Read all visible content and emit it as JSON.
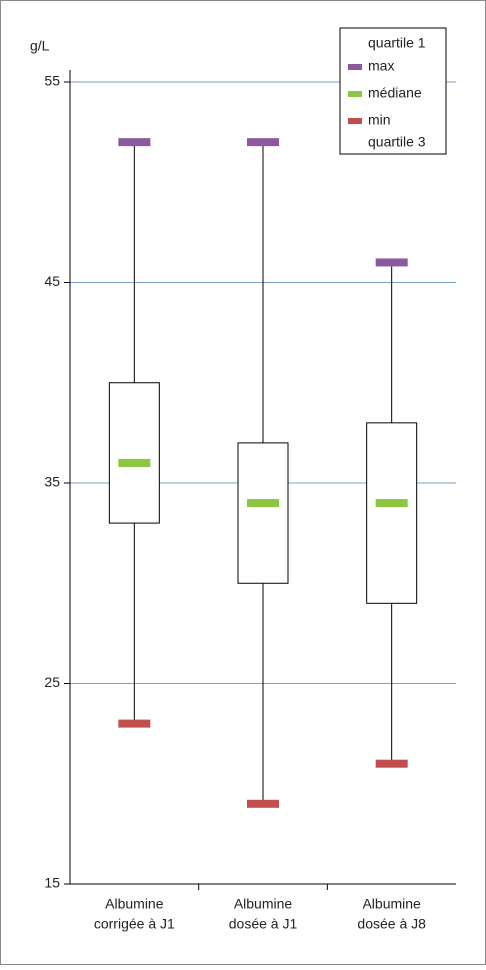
{
  "chart_data": {
    "type": "box",
    "y_label": "g/L",
    "categories": [
      [
        "Albumine",
        "corrigée à J1"
      ],
      [
        "Albumine",
        "dosée à J1"
      ],
      [
        "Albumine",
        "dosée à J8"
      ]
    ],
    "series": [
      {
        "name": "quartile 1",
        "values": [
          33,
          30,
          29
        ]
      },
      {
        "name": "max",
        "color": "#8b5a9c",
        "values": [
          52,
          52,
          46
        ]
      },
      {
        "name": "médiane",
        "color": "#8dc63f",
        "values": [
          36,
          34,
          34
        ]
      },
      {
        "name": "min",
        "color": "#c0504d",
        "values": [
          23,
          19,
          21
        ]
      },
      {
        "name": "quartile 3",
        "values": [
          40,
          37,
          38
        ]
      }
    ],
    "ylim": [
      15,
      55
    ],
    "yticks": [
      15,
      25,
      35,
      45,
      55
    ],
    "grid": true,
    "grid_color": "#7f9fc8",
    "legend": "top-right"
  }
}
